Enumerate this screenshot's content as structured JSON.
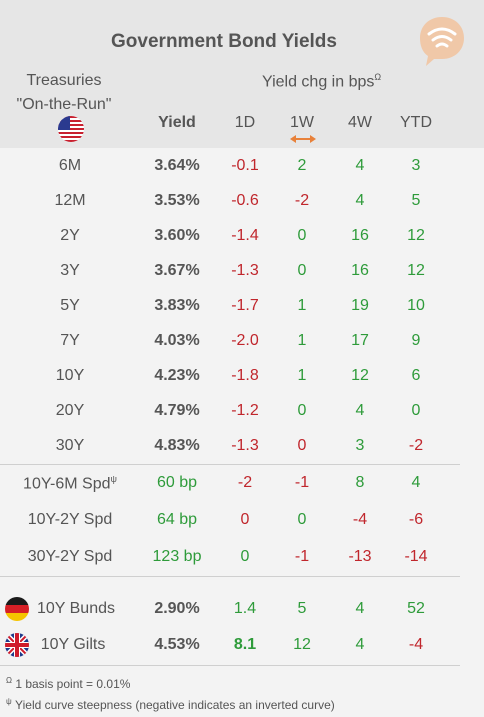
{
  "title": "Government Bond Yields",
  "treasuries_label_line1": "Treasuries",
  "treasuries_label_line2": "\"On-the-Run\"",
  "yield_change_title": "Yield chg in bps",
  "yield_change_sup": "Ω",
  "columns": {
    "yield": "Yield",
    "d1": "1D",
    "w1": "1W",
    "w4": "4W",
    "ytd": "YTD"
  },
  "treasuries": [
    {
      "label": "6M",
      "yield": "3.64%",
      "d1": "-0.1",
      "w1": "2",
      "w4": "4",
      "ytd": "3"
    },
    {
      "label": "12M",
      "yield": "3.53%",
      "d1": "-0.6",
      "w1": "-2",
      "w4": "4",
      "ytd": "5"
    },
    {
      "label": "2Y",
      "yield": "3.60%",
      "d1": "-1.4",
      "w1": "0",
      "w4": "16",
      "ytd": "12"
    },
    {
      "label": "3Y",
      "yield": "3.67%",
      "d1": "-1.3",
      "w1": "0",
      "w4": "16",
      "ytd": "12"
    },
    {
      "label": "5Y",
      "yield": "3.83%",
      "d1": "-1.7",
      "w1": "1",
      "w4": "19",
      "ytd": "10"
    },
    {
      "label": "7Y",
      "yield": "4.03%",
      "d1": "-2.0",
      "w1": "1",
      "w4": "17",
      "ytd": "9"
    },
    {
      "label": "10Y",
      "yield": "4.23%",
      "d1": "-1.8",
      "w1": "1",
      "w4": "12",
      "ytd": "6"
    },
    {
      "label": "20Y",
      "yield": "4.79%",
      "d1": "-1.2",
      "w1": "0",
      "w4": "4",
      "ytd": "0"
    },
    {
      "label": "30Y",
      "yield": "4.83%",
      "d1": "-1.3",
      "w1": "0",
      "w4": "3",
      "ytd": "-2"
    }
  ],
  "spreads": [
    {
      "label": "10Y-6M Spd",
      "sup": "ψ",
      "yield": "60 bp",
      "d1": "-2",
      "w1": "-1",
      "w4": "8",
      "ytd": "4"
    },
    {
      "label": "10Y-2Y Spd",
      "sup": "",
      "yield": "64 bp",
      "d1": "0",
      "w1": "0",
      "w4": "-4",
      "ytd": "-6"
    },
    {
      "label": "30Y-2Y Spd",
      "sup": "",
      "yield": "123 bp",
      "d1": "0",
      "w1": "-1",
      "w4": "-13",
      "ytd": "-14"
    }
  ],
  "international": [
    {
      "label": "10Y Bunds",
      "flag": "germany-flag-icon",
      "yield": "2.90%",
      "d1": "1.4",
      "w1": "5",
      "w4": "4",
      "ytd": "52"
    },
    {
      "label": "10Y Gilts",
      "flag": "uk-flag-icon",
      "yield": "4.53%",
      "d1": "8.1",
      "w1": "12",
      "w4": "4",
      "ytd": "-4"
    }
  ],
  "footnote1_sup": "Ω",
  "footnote1": "1 basis point = 0.01%",
  "footnote2_sup": "ψ",
  "footnote2": "Yield curve steepness (negative indicates an inverted curve)",
  "colors": {
    "negative": "#c0262c",
    "positive": "#2e9b3a",
    "header_bg": "#e6e6e6",
    "body_bg": "#f3f3f3",
    "accent": "#e8813a"
  }
}
